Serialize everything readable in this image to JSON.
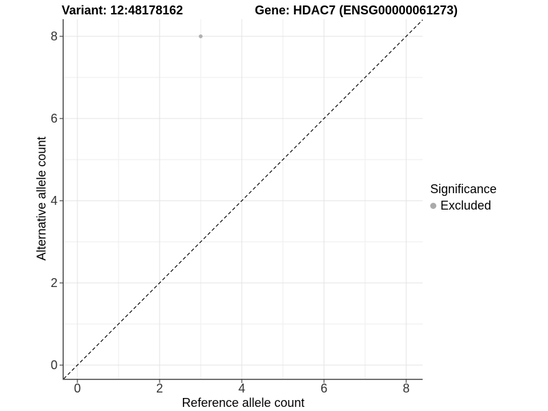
{
  "chart_data": {
    "type": "scatter",
    "title_left": "Variant: 12:48178162",
    "title_right": "Gene: HDAC7 (ENSG00000061273)",
    "xlabel": "Reference allele count",
    "ylabel": "Alternative allele count",
    "x_ticks": [
      0,
      2,
      4,
      6,
      8
    ],
    "y_ticks": [
      0,
      2,
      4,
      6,
      8
    ],
    "minor_gridlines": [
      1,
      3,
      5,
      7
    ],
    "xlim": [
      -0.333,
      8.4
    ],
    "ylim": [
      -0.333,
      8.417
    ],
    "grid": true,
    "points": [
      {
        "x": 3,
        "y": 8,
        "series": "Excluded"
      }
    ],
    "reference_line": {
      "type": "identity",
      "style": "dashed",
      "color": "#000000"
    },
    "legend": {
      "title": "Significance",
      "position": "right",
      "items": [
        {
          "label": "Excluded",
          "color": "#aaaaaa"
        }
      ]
    },
    "colors": {
      "point": "#b0b0b0",
      "major_grid": "#e3e3e3",
      "minor_grid": "#ededed",
      "axis_line": "#464646",
      "tick_text": "#333333",
      "background": "#ffffff"
    }
  }
}
